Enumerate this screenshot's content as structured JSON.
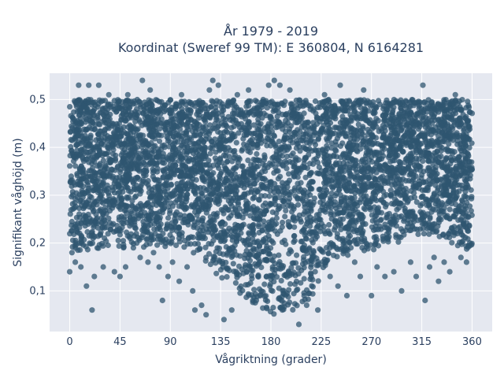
{
  "chart_data": {
    "type": "scatter",
    "title": [
      "År 1979 - 2019",
      "Koordinat (Sweref 99 TM): E 360804, N 6164281"
    ],
    "xlabel": "Vågriktning (grader)",
    "ylabel": "Signifikant våghöjd (m)",
    "xlim": [
      -18,
      378
    ],
    "ylim": [
      0.015,
      0.555
    ],
    "xticks": [
      0,
      45,
      90,
      135,
      180,
      225,
      270,
      315,
      360
    ],
    "yticks": [
      0.1,
      0.2,
      0.3,
      0.4,
      0.5
    ],
    "ytick_labels": [
      "0,1",
      "0,2",
      "0,3",
      "0,4",
      "0,5"
    ],
    "grid": true,
    "marker_color": "#2f5670",
    "background_color": "#e5e8f0",
    "dense_envelope": {
      "x": [
        0,
        30,
        60,
        90,
        110,
        120,
        130,
        140,
        150,
        160,
        170,
        180,
        190,
        200,
        210,
        220,
        230,
        240,
        260,
        280,
        300,
        320,
        340,
        360
      ],
      "y_min": [
        0.18,
        0.19,
        0.19,
        0.19,
        0.18,
        0.16,
        0.13,
        0.11,
        0.09,
        0.07,
        0.06,
        0.05,
        0.04,
        0.05,
        0.07,
        0.1,
        0.15,
        0.17,
        0.18,
        0.19,
        0.2,
        0.22,
        0.2,
        0.18
      ],
      "y_max": 0.5
    },
    "outliers": [
      {
        "x": 0,
        "y": 0.14
      },
      {
        "x": 2,
        "y": 0.18
      },
      {
        "x": 5,
        "y": 0.16
      },
      {
        "x": 8,
        "y": 0.53
      },
      {
        "x": 10,
        "y": 0.15
      },
      {
        "x": 15,
        "y": 0.11
      },
      {
        "x": 17,
        "y": 0.53
      },
      {
        "x": 20,
        "y": 0.06
      },
      {
        "x": 22,
        "y": 0.13
      },
      {
        "x": 26,
        "y": 0.53
      },
      {
        "x": 30,
        "y": 0.15
      },
      {
        "x": 35,
        "y": 0.51
      },
      {
        "x": 40,
        "y": 0.14
      },
      {
        "x": 45,
        "y": 0.13
      },
      {
        "x": 50,
        "y": 0.15
      },
      {
        "x": 52,
        "y": 0.51
      },
      {
        "x": 57,
        "y": 0.19
      },
      {
        "x": 60,
        "y": 0.2
      },
      {
        "x": 63,
        "y": 0.17
      },
      {
        "x": 65,
        "y": 0.54
      },
      {
        "x": 70,
        "y": 0.16
      },
      {
        "x": 72,
        "y": 0.52
      },
      {
        "x": 75,
        "y": 0.18
      },
      {
        "x": 80,
        "y": 0.15
      },
      {
        "x": 83,
        "y": 0.08
      },
      {
        "x": 88,
        "y": 0.13
      },
      {
        "x": 92,
        "y": 0.16
      },
      {
        "x": 98,
        "y": 0.12
      },
      {
        "x": 100,
        "y": 0.51
      },
      {
        "x": 105,
        "y": 0.15
      },
      {
        "x": 110,
        "y": 0.1
      },
      {
        "x": 112,
        "y": 0.06
      },
      {
        "x": 118,
        "y": 0.07
      },
      {
        "x": 122,
        "y": 0.05
      },
      {
        "x": 125,
        "y": 0.52
      },
      {
        "x": 128,
        "y": 0.54
      },
      {
        "x": 133,
        "y": 0.53
      },
      {
        "x": 138,
        "y": 0.04
      },
      {
        "x": 145,
        "y": 0.06
      },
      {
        "x": 150,
        "y": 0.51
      },
      {
        "x": 160,
        "y": 0.52
      },
      {
        "x": 178,
        "y": 0.53
      },
      {
        "x": 183,
        "y": 0.54
      },
      {
        "x": 188,
        "y": 0.53
      },
      {
        "x": 197,
        "y": 0.52
      },
      {
        "x": 205,
        "y": 0.03
      },
      {
        "x": 212,
        "y": 0.07
      },
      {
        "x": 222,
        "y": 0.06
      },
      {
        "x": 228,
        "y": 0.51
      },
      {
        "x": 233,
        "y": 0.13
      },
      {
        "x": 240,
        "y": 0.11
      },
      {
        "x": 242,
        "y": 0.53
      },
      {
        "x": 248,
        "y": 0.09
      },
      {
        "x": 255,
        "y": 0.16
      },
      {
        "x": 260,
        "y": 0.13
      },
      {
        "x": 263,
        "y": 0.52
      },
      {
        "x": 270,
        "y": 0.09
      },
      {
        "x": 275,
        "y": 0.15
      },
      {
        "x": 282,
        "y": 0.13
      },
      {
        "x": 290,
        "y": 0.14
      },
      {
        "x": 297,
        "y": 0.1
      },
      {
        "x": 305,
        "y": 0.16
      },
      {
        "x": 310,
        "y": 0.13
      },
      {
        "x": 316,
        "y": 0.53
      },
      {
        "x": 318,
        "y": 0.08
      },
      {
        "x": 322,
        "y": 0.15
      },
      {
        "x": 326,
        "y": 0.17
      },
      {
        "x": 330,
        "y": 0.12
      },
      {
        "x": 335,
        "y": 0.16
      },
      {
        "x": 340,
        "y": 0.14
      },
      {
        "x": 345,
        "y": 0.51
      },
      {
        "x": 350,
        "y": 0.17
      },
      {
        "x": 355,
        "y": 0.16
      },
      {
        "x": 358,
        "y": 0.2
      }
    ]
  }
}
